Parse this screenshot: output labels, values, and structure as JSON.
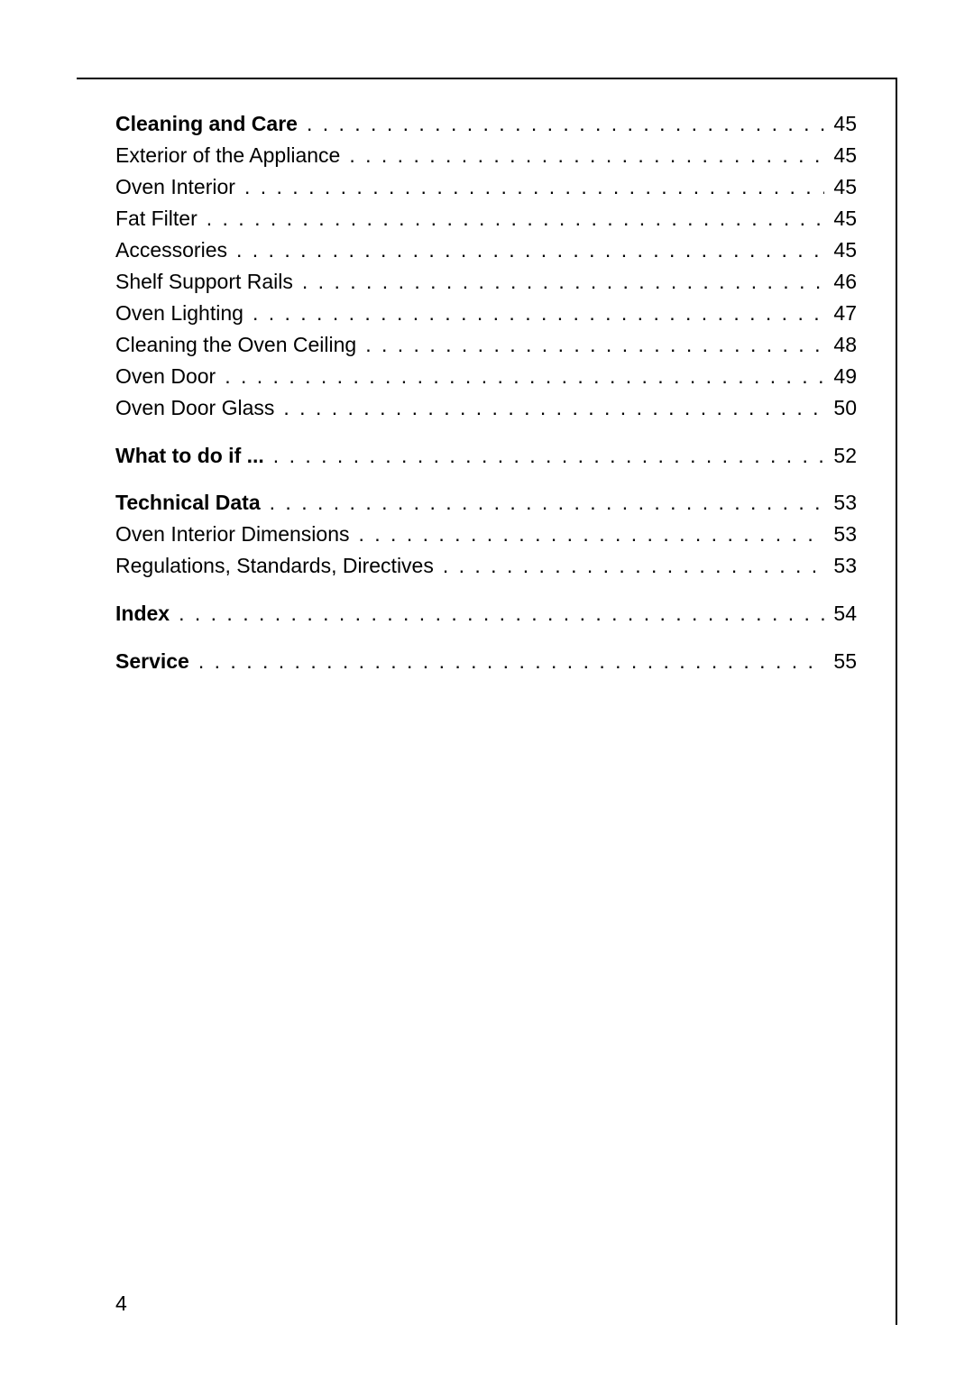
{
  "page_number": "4",
  "sections": [
    {
      "entries": [
        {
          "label": "Cleaning and Care",
          "page": "45",
          "bold": true
        },
        {
          "label": "Exterior of the Appliance",
          "page": "45",
          "bold": false
        },
        {
          "label": "Oven Interior",
          "page": "45",
          "bold": false
        },
        {
          "label": "Fat Filter",
          "page": "45",
          "bold": false
        },
        {
          "label": "Accessories",
          "page": "45",
          "bold": false
        },
        {
          "label": "Shelf Support Rails",
          "page": "46",
          "bold": false
        },
        {
          "label": "Oven Lighting",
          "page": "47",
          "bold": false
        },
        {
          "label": "Cleaning the Oven Ceiling",
          "page": "48",
          "bold": false
        },
        {
          "label": "Oven Door",
          "page": "49",
          "bold": false
        },
        {
          "label": "Oven Door Glass",
          "page": "50",
          "bold": false
        }
      ]
    },
    {
      "entries": [
        {
          "label": "What to do if ...",
          "page": "52",
          "bold": true
        }
      ]
    },
    {
      "entries": [
        {
          "label": "Technical Data",
          "page": "53",
          "bold": true
        },
        {
          "label": "Oven Interior Dimensions",
          "page": "53",
          "bold": false
        },
        {
          "label": "Regulations, Standards, Directives",
          "page": "53",
          "bold": false
        }
      ]
    },
    {
      "entries": [
        {
          "label": "Index",
          "page": "54",
          "bold": true
        }
      ]
    },
    {
      "entries": [
        {
          "label": "Service",
          "page": "55",
          "bold": true
        }
      ]
    }
  ]
}
